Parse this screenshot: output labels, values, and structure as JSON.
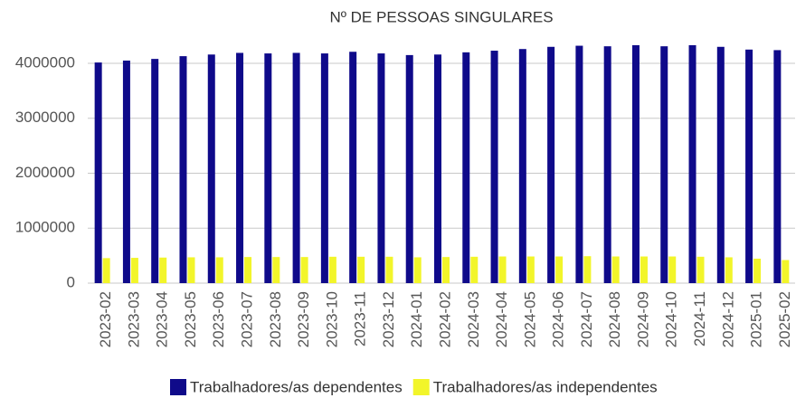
{
  "chart_data": {
    "type": "bar",
    "title": "Nº DE PESSOAS SINGULARES",
    "categories": [
      "2023-02",
      "2023-03",
      "2023-04",
      "2023-05",
      "2023-06",
      "2023-07",
      "2023-08",
      "2023-09",
      "2023-10",
      "2023-11",
      "2023-12",
      "2024-01",
      "2024-02",
      "2024-03",
      "2024-04",
      "2024-05",
      "2024-06",
      "2024-07",
      "2024-08",
      "2024-09",
      "2024-10",
      "2024-11",
      "2024-12",
      "2025-01",
      "2025-02"
    ],
    "series": [
      {
        "name": "Trabalhadores/as dependentes",
        "color": "#0f0a8a",
        "values": [
          4015000,
          4050000,
          4080000,
          4130000,
          4160000,
          4190000,
          4180000,
          4190000,
          4180000,
          4210000,
          4180000,
          4150000,
          4160000,
          4200000,
          4230000,
          4260000,
          4300000,
          4320000,
          4310000,
          4330000,
          4310000,
          4330000,
          4300000,
          4250000,
          4240000
        ]
      },
      {
        "name": "Trabalhadores/as independentes",
        "color": "#f2f52a",
        "values": [
          455000,
          460000,
          465000,
          470000,
          470000,
          475000,
          475000,
          475000,
          480000,
          480000,
          480000,
          470000,
          475000,
          480000,
          485000,
          485000,
          485000,
          490000,
          485000,
          485000,
          485000,
          480000,
          470000,
          445000,
          420000
        ]
      }
    ],
    "ylim": [
      0,
      4400000
    ],
    "yticks": [
      0,
      1000000,
      2000000,
      3000000,
      4000000
    ],
    "grid": true,
    "legend": "bottom"
  }
}
